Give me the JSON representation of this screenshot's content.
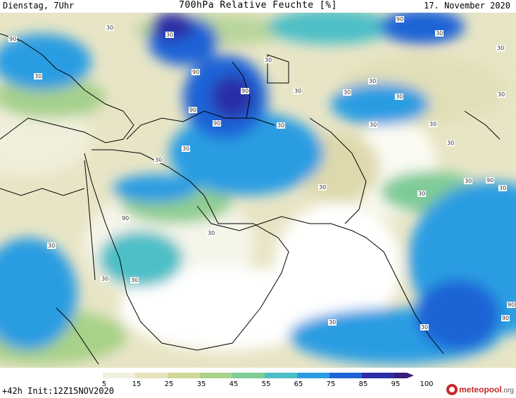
{
  "header": {
    "left": "Dienstag, 7Uhr",
    "title": "700hPa Relative Feuchte [%]",
    "date": "17. November 2020"
  },
  "footer": {
    "forecast": "+42h Init:12Z15NOV2020",
    "logo_name": "meteopool",
    "logo_domain": ".org"
  },
  "legend": {
    "ticks": [
      "5",
      "15",
      "25",
      "35",
      "45",
      "55",
      "65",
      "75",
      "85",
      "95",
      "100"
    ],
    "colors": [
      "#ffffff",
      "#f0efe0",
      "#e6e2bd",
      "#cfd79a",
      "#a8d189",
      "#7fcb98",
      "#4dbfc7",
      "#2a9de2",
      "#1e63d6",
      "#2c2ea6",
      "#3a1a7a"
    ]
  },
  "map": {
    "contour_labels": [
      "90",
      "30",
      "90",
      "30",
      "30",
      "90",
      "90",
      "90",
      "30",
      "90",
      "30",
      "30",
      "30",
      "30",
      "30",
      "30",
      "30",
      "30",
      "30",
      "30",
      "30",
      "30",
      "30",
      "90",
      "30",
      "30",
      "30",
      "90",
      "30",
      "90",
      "90",
      "30",
      "30",
      "30",
      "30",
      "30",
      "30"
    ]
  }
}
